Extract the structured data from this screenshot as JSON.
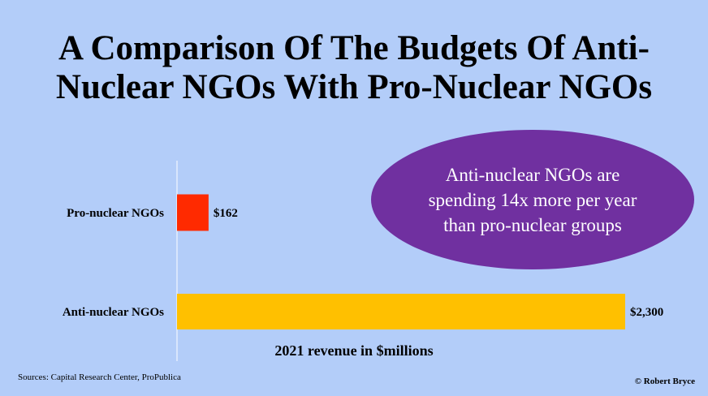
{
  "title": "A Comparison Of The Budgets Of Anti-Nuclear NGOs With Pro-Nuclear NGOs",
  "callout": "Anti-nuclear NGOs are spending 14x more per year than pro-nuclear groups",
  "sources": "Sources: Capital Research Center, ProPublica",
  "copyright": "© Robert Bryce",
  "colors": {
    "background": "#b3cdf9",
    "pro": "#ff2a00",
    "anti": "#ffc000",
    "callout": "#7030a0"
  },
  "chart_data": {
    "type": "bar",
    "orientation": "horizontal",
    "title": "A Comparison Of The Budgets Of Anti-Nuclear NGOs With Pro-Nuclear NGOs",
    "categories": [
      "Pro-nuclear NGOs",
      "Anti-nuclear NGOs"
    ],
    "values": [
      162,
      2300
    ],
    "value_labels": [
      "$162",
      "$2,300"
    ],
    "colors": [
      "#ff2a00",
      "#ffc000"
    ],
    "xlabel": "2021 revenue in $millions",
    "ylabel": "",
    "xlim": [
      0,
      2300
    ],
    "grid": false
  }
}
